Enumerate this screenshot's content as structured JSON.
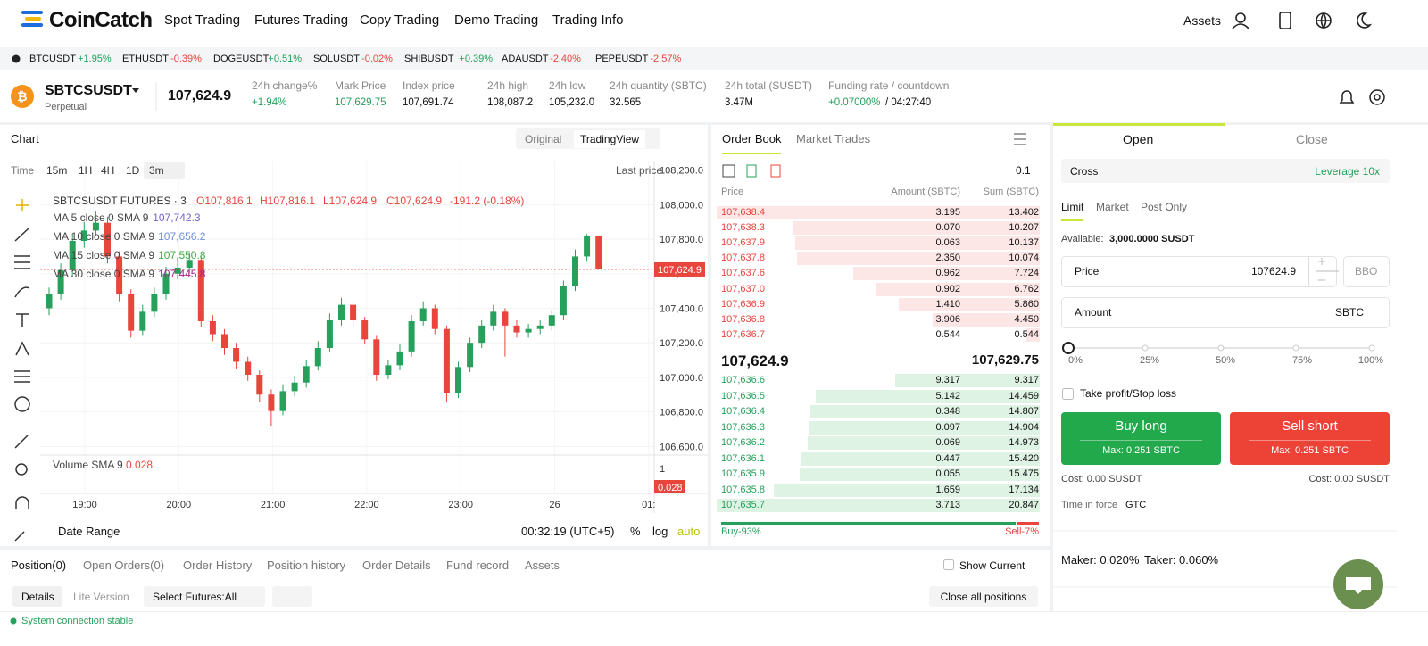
{
  "header": {
    "logo": "CoinCatch",
    "nav": [
      "Spot Trading",
      "Futures Trading",
      "Copy Trading",
      "Demo Trading",
      "Trading Info"
    ],
    "assets": "Assets"
  },
  "ticker": [
    {
      "symbol": "BTCUSDT",
      "change": "+1.95%"
    },
    {
      "symbol": "ETHUSDT",
      "change": "-0.39%"
    },
    {
      "symbol": "DOGEUSDT",
      "change": "+0.51%"
    },
    {
      "symbol": "SOLUSDT",
      "change": "-0.02%"
    },
    {
      "symbol": "SHIBUSDT",
      "change": "+0.39%"
    },
    {
      "symbol": "ADAUSDT",
      "change": "-2.40%"
    },
    {
      "symbol": "PEPEUSDT",
      "change": "-2.57%"
    }
  ],
  "symbol": {
    "name": "SBTCSUSDT",
    "type": "Perpetual",
    "price": "107,624.9",
    "stats": [
      {
        "label": "24h change%",
        "value": "+1.94%"
      },
      {
        "label": "Mark Price",
        "value": "107,629.75"
      },
      {
        "label": "Index price",
        "value": "107,691.74"
      },
      {
        "label": "24h high",
        "value": "108,087.2"
      },
      {
        "label": "24h low",
        "value": "105,232.0"
      },
      {
        "label": "24h quantity (SBTC)",
        "value": "32.565"
      },
      {
        "label": "24h total (SUSDT)",
        "value": "3.47M"
      },
      {
        "label": "Funding rate / countdown",
        "value": "+0.07000%",
        "extra": "/ 04:27:40"
      }
    ]
  },
  "chart": {
    "tab": "Chart",
    "views": [
      "Original",
      "TradingView"
    ],
    "intervals": [
      "Time",
      "15m",
      "1H",
      "4H",
      "1D",
      "3m"
    ],
    "price_type": "Last price",
    "title": "SBTCSUSDT FUTURES · 3",
    "ohlc": [
      "O107,816.1",
      "H107,816.1",
      "L107,624.9",
      "C107,624.9",
      "-191.2 (-0.18%)"
    ],
    "ma": [
      {
        "label": "MA 5 close 0 SMA 9",
        "value": "107,742.3",
        "color": "#7166c9"
      },
      {
        "label": "MA 10 close 0 SMA 9",
        "value": "107,656.2",
        "color": "#6b8fd6"
      },
      {
        "label": "MA 15 close 0 SMA 9",
        "value": "107,550.8",
        "color": "#45a845"
      },
      {
        "label": "MA 30 close 0 SMA 9",
        "value": "107,445.8",
        "color": "#a0248f"
      }
    ],
    "ylim": [
      106550,
      108255
    ],
    "yticks": [
      {
        "value": 106600,
        "label": "106,600.0"
      },
      {
        "value": 106800,
        "label": "106,800.0"
      },
      {
        "value": 107000,
        "label": "107,000.0"
      },
      {
        "value": 107200,
        "label": "107,200.0"
      },
      {
        "value": 107400,
        "label": "107,400.0"
      },
      {
        "value": 107600,
        "label": "107,600.0"
      },
      {
        "value": 107800,
        "label": "107,800.0"
      },
      {
        "value": 108000,
        "label": "108,000.0"
      },
      {
        "value": 108200,
        "label": "108,200.0"
      }
    ],
    "up_color": "#26a05b",
    "down_color": "#e8453c",
    "candles": [
      [
        107400,
        107520,
        107360,
        107480
      ],
      [
        107480,
        107660,
        107450,
        107620
      ],
      [
        107620,
        107830,
        107590,
        107790
      ],
      [
        107790,
        107900,
        107750,
        107850
      ],
      [
        107850,
        107960,
        107820,
        107895
      ],
      [
        107895,
        107930,
        107660,
        107700
      ],
      [
        107700,
        107730,
        107440,
        107480
      ],
      [
        107480,
        107510,
        107230,
        107270
      ],
      [
        107270,
        107420,
        107240,
        107380
      ],
      [
        107380,
        107520,
        107350,
        107480
      ],
      [
        107480,
        107640,
        107450,
        107600
      ],
      [
        107600,
        107680,
        107570,
        107635
      ],
      [
        107635,
        107720,
        107600,
        107680
      ],
      [
        107680,
        107700,
        107290,
        107325
      ],
      [
        107325,
        107360,
        107210,
        107250
      ],
      [
        107250,
        107280,
        107130,
        107170
      ],
      [
        107170,
        107200,
        107050,
        107090
      ],
      [
        107090,
        107120,
        106980,
        107015
      ],
      [
        107015,
        107040,
        106860,
        106900
      ],
      [
        106900,
        106930,
        106720,
        106805
      ],
      [
        106805,
        106960,
        106780,
        106920
      ],
      [
        106920,
        107010,
        106890,
        106970
      ],
      [
        106970,
        107100,
        106940,
        107065
      ],
      [
        107065,
        107210,
        107040,
        107170
      ],
      [
        107170,
        107370,
        107150,
        107330
      ],
      [
        107330,
        107460,
        107300,
        107420
      ],
      [
        107420,
        107440,
        107300,
        107330
      ],
      [
        107330,
        107350,
        107190,
        107220
      ],
      [
        107220,
        107240,
        106980,
        107015
      ],
      [
        107015,
        107100,
        106990,
        107070
      ],
      [
        107070,
        107190,
        107040,
        107150
      ],
      [
        107150,
        107360,
        107120,
        107325
      ],
      [
        107325,
        107440,
        107300,
        107400
      ],
      [
        107400,
        107420,
        107250,
        107280
      ],
      [
        107280,
        107300,
        106860,
        106910
      ],
      [
        106910,
        107090,
        106880,
        107060
      ],
      [
        107060,
        107230,
        107030,
        107200
      ],
      [
        107200,
        107330,
        107170,
        107300
      ],
      [
        107300,
        107420,
        107270,
        107380
      ],
      [
        107380,
        107400,
        107120,
        107300
      ],
      [
        107300,
        107330,
        107230,
        107260
      ],
      [
        107260,
        107310,
        107230,
        107280
      ],
      [
        107280,
        107330,
        107250,
        107300
      ],
      [
        107300,
        107390,
        107270,
        107360
      ],
      [
        107360,
        107560,
        107330,
        107530
      ],
      [
        107530,
        107740,
        107500,
        107700
      ],
      [
        107700,
        107830,
        107670,
        107816.1
      ],
      [
        107816.1,
        107816.1,
        107624.9,
        107624.9
      ]
    ],
    "last_price": {
      "value": 107624.9,
      "label": "107,624.9"
    },
    "times": [
      "19:00",
      "20:00",
      "21:00",
      "22:00",
      "23:00",
      "26",
      "01:"
    ],
    "volume": {
      "label": "Volume SMA 9",
      "value": "0.028",
      "tick": "1",
      "tag": "0.028"
    },
    "footer": {
      "range": "Date Range",
      "clock": "00:32:19 (UTC+5)",
      "percent": "%",
      "log": "log",
      "auto": "auto"
    }
  },
  "order_book": {
    "tabs": [
      "Order Book",
      "Market Trades"
    ],
    "precision": "0.1",
    "columns": [
      "Price",
      "Amount (SBTC)",
      "Sum (SBTC)"
    ],
    "asks": [
      [
        "107,638.4",
        "3.195",
        "13.402"
      ],
      [
        "107,638.3",
        "0.070",
        "10.207"
      ],
      [
        "107,637.9",
        "0.063",
        "10.137"
      ],
      [
        "107,637.8",
        "2.350",
        "10.074"
      ],
      [
        "107,637.6",
        "0.962",
        "7.724"
      ],
      [
        "107,637.0",
        "0.902",
        "6.762"
      ],
      [
        "107,636.9",
        "1.410",
        "5.860"
      ],
      [
        "107,636.8",
        "3.906",
        "4.450"
      ],
      [
        "107,636.7",
        "0.544",
        "0.544"
      ]
    ],
    "mid": "107,624.9",
    "mark": "107,629.75",
    "bids": [
      [
        "107,636.6",
        "9.317",
        "9.317"
      ],
      [
        "107,636.5",
        "5.142",
        "14.459"
      ],
      [
        "107,636.4",
        "0.348",
        "14.807"
      ],
      [
        "107,636.3",
        "0.097",
        "14.904"
      ],
      [
        "107,636.2",
        "0.069",
        "14.973"
      ],
      [
        "107,636.1",
        "0.447",
        "15.420"
      ],
      [
        "107,635.9",
        "0.055",
        "15.475"
      ],
      [
        "107,635.8",
        "1.659",
        "17.134"
      ],
      [
        "107,635.7",
        "3.713",
        "20.847"
      ]
    ],
    "buy": "Buy-93%",
    "sell": "Sell-7%"
  },
  "trade": {
    "tabs": [
      "Open",
      "Close"
    ],
    "margin": "Cross",
    "leverage": "Leverage 10x",
    "order_types": [
      "Limit",
      "Market",
      "Post Only"
    ],
    "available_label": "Available:",
    "available": "3,000.0000 SUSDT",
    "price_label": "Price",
    "price": "107624.9",
    "bbo": "BBO",
    "amount_label": "Amount",
    "unit": "SBTC",
    "slider": [
      "0%",
      "25%",
      "50%",
      "75%",
      "100%"
    ],
    "tpsl": "Take profit/Stop loss",
    "buy": "Buy long",
    "sell": "Sell short",
    "max_buy": "Max: 0.251 SBTC",
    "max_sell": "Max: 0.251 SBTC",
    "cost_buy": "Cost: 0.00 SUSDT",
    "cost_sell": "Cost: 0.00 SUSDT",
    "tif_label": "Time in force",
    "tif": "GTC",
    "maker": "Maker: 0.020%",
    "taker": "Taker: 0.060%"
  },
  "positions": {
    "tabs": [
      "Position(0)",
      "Open Orders(0)",
      "Order History",
      "Position history",
      "Order Details",
      "Fund record",
      "Assets"
    ],
    "show_current": "Show Current",
    "views": [
      "Details",
      "Lite Version"
    ],
    "filter": "Select Futures:All",
    "close_all": "Close all positions"
  },
  "status": "System connection stable"
}
